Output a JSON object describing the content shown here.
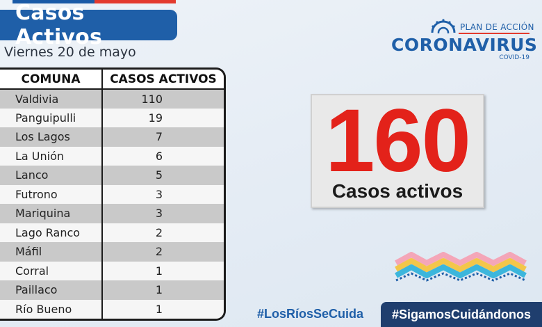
{
  "header": {
    "title": "Casos Activos",
    "date": "Viernes 20 de mayo"
  },
  "logo": {
    "plan": "PLAN DE ACCIÓN",
    "main": "CORONAVIRUS",
    "sub": "COVID-19"
  },
  "table": {
    "headers": [
      "COMUNA",
      "CASOS ACTIVOS"
    ],
    "rows": [
      {
        "comuna": "Valdivia",
        "casos": "110"
      },
      {
        "comuna": "Panguipulli",
        "casos": "19"
      },
      {
        "comuna": "Los Lagos",
        "casos": "7"
      },
      {
        "comuna": "La Unión",
        "casos": "6"
      },
      {
        "comuna": "Lanco",
        "casos": "5"
      },
      {
        "comuna": "Futrono",
        "casos": "3"
      },
      {
        "comuna": "Mariquina",
        "casos": "3"
      },
      {
        "comuna": "Lago Ranco",
        "casos": "2"
      },
      {
        "comuna": "Máfil",
        "casos": "2"
      },
      {
        "comuna": "Corral",
        "casos": "1"
      },
      {
        "comuna": "Paillaco",
        "casos": "1"
      },
      {
        "comuna": "Río Bueno",
        "casos": "1"
      }
    ]
  },
  "total": {
    "number": "160",
    "label": "Casos activos"
  },
  "hashtags": {
    "left": "#LosRíosSeCuida",
    "right": "#SigamosCuidándonos"
  },
  "colors": {
    "brand_blue": "#1f5fa8",
    "accent_red": "#e3221a",
    "dark_navy": "#1f3e6e"
  },
  "icons": {
    "logo": "coronavirus-logo-icon",
    "region": "los-rios-region-icon"
  }
}
